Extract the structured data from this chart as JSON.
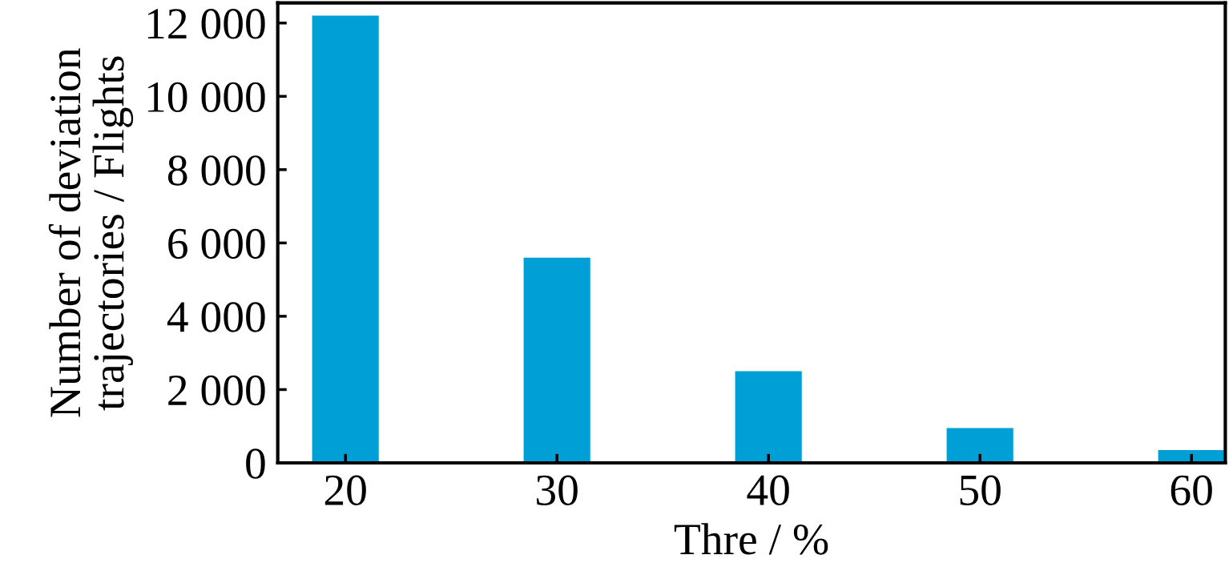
{
  "chart_data": {
    "type": "bar",
    "xlabel": "Thre / %",
    "ylabel": "Number of deviation\ntrajectories / Flights",
    "x": [
      20,
      30,
      40,
      50,
      60
    ],
    "values": [
      12200,
      5600,
      2500,
      950,
      350
    ],
    "color": "#009fd6",
    "xlim": [
      16.8,
      61.6
    ],
    "xticks": [
      20,
      30,
      40,
      50,
      60
    ],
    "ylim": [
      0,
      12550
    ],
    "yticks": [
      {
        "value": 0,
        "label": "0"
      },
      {
        "value": 2000,
        "label": "2 000"
      },
      {
        "value": 4000,
        "label": "4 000"
      },
      {
        "value": 6000,
        "label": "6 000"
      },
      {
        "value": 8000,
        "label": "8 000"
      },
      {
        "value": 10000,
        "label": "10 000"
      },
      {
        "value": 12000,
        "label": "12 000"
      }
    ],
    "grid": false
  }
}
